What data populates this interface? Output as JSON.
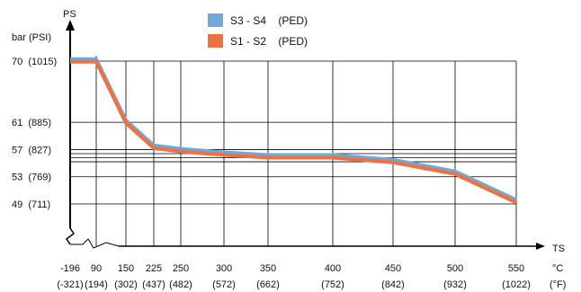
{
  "chart_data": {
    "type": "line",
    "title": "",
    "y_axis": {
      "label": "PS",
      "unit_label": "bar (PSI)"
    },
    "x_axis": {
      "label": "TS",
      "unit_c": "°C",
      "unit_f": "(°F)"
    },
    "y_ticks": [
      {
        "value": 70,
        "label": "70  (1015)"
      },
      {
        "value": 61,
        "label": "61  (885)"
      },
      {
        "value": 57,
        "label": "57  (827)"
      },
      {
        "value": 53,
        "label": "53  (769)"
      },
      {
        "value": 49,
        "label": "49  (711)"
      }
    ],
    "y_grid_extra": [
      56.4,
      55.8,
      55.2
    ],
    "ylim": [
      44,
      72
    ],
    "x_ticks": [
      {
        "value": -196,
        "c": "-196",
        "f": "(-321)"
      },
      {
        "value": 90,
        "c": "90",
        "f": "(194)"
      },
      {
        "value": 150,
        "c": "150",
        "f": "(302)"
      },
      {
        "value": 225,
        "c": "225",
        "f": "(437)"
      },
      {
        "value": 250,
        "c": "250",
        "f": "(482)"
      },
      {
        "value": 300,
        "c": "300",
        "f": "(572)"
      },
      {
        "value": 350,
        "c": "350",
        "f": "(662)"
      },
      {
        "value": 400,
        "c": "400",
        "f": "(752)"
      },
      {
        "value": 450,
        "c": "450",
        "f": "(842)"
      },
      {
        "value": 500,
        "c": "500",
        "f": "(932)"
      },
      {
        "value": 550,
        "c": "550",
        "f": "(1022)"
      }
    ],
    "grid": true,
    "legend_position": "top-center",
    "series": [
      {
        "name": "S3 - S4    (PED)",
        "color": "#6fa8dc",
        "points": [
          [
            -196,
            70.3
          ],
          [
            90,
            70.3
          ],
          [
            150,
            61.3
          ],
          [
            225,
            57.6
          ],
          [
            250,
            57.1
          ],
          [
            300,
            56.6
          ],
          [
            350,
            56.2
          ],
          [
            400,
            56.2
          ],
          [
            450,
            55.5
          ],
          [
            500,
            53.8
          ],
          [
            550,
            49.6
          ]
        ]
      },
      {
        "name": "S1 - S2    (PED)",
        "color": "#f07040",
        "points": [
          [
            -196,
            69.9
          ],
          [
            90,
            69.9
          ],
          [
            150,
            60.9
          ],
          [
            225,
            57.2
          ],
          [
            250,
            56.7
          ],
          [
            300,
            56.2
          ],
          [
            350,
            55.8
          ],
          [
            400,
            55.8
          ],
          [
            450,
            55.1
          ],
          [
            500,
            53.4
          ],
          [
            550,
            49.2
          ]
        ]
      }
    ]
  }
}
